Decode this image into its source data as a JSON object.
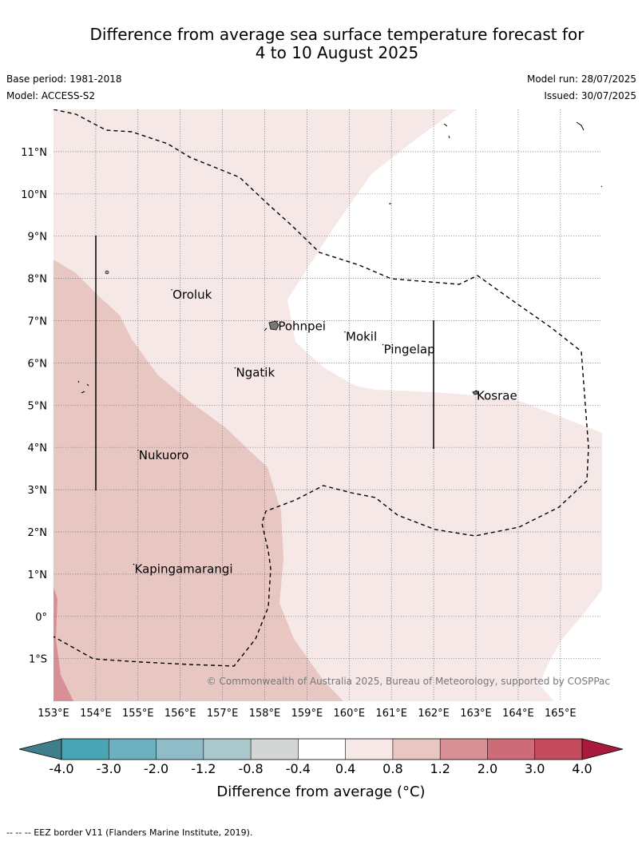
{
  "title": {
    "line1": "Difference from average sea surface temperature forecast for",
    "line2": "4 to 10 August 2025"
  },
  "meta": {
    "base_period": "Base period: 1981-2018",
    "model": "Model: ACCESS-S2",
    "model_run": "Model run: 28/07/2025",
    "issued": "Issued: 30/07/2025"
  },
  "map": {
    "lon_ticks": [
      "153°E",
      "154°E",
      "155°E",
      "156°E",
      "157°E",
      "158°E",
      "159°E",
      "160°E",
      "161°E",
      "162°E",
      "163°E",
      "164°E",
      "165°E"
    ],
    "lat_ticks": [
      "11°N",
      "10°N",
      "9°N",
      "8°N",
      "7°N",
      "6°N",
      "5°N",
      "4°N",
      "3°N",
      "2°N",
      "1°N",
      "0°",
      "1°S"
    ],
    "places": [
      {
        "name": "Oroluk",
        "lon": 155.8,
        "lat": 7.6
      },
      {
        "name": "Pohnpei",
        "lon": 158.3,
        "lat": 6.85
      },
      {
        "name": "Mokil",
        "lon": 159.9,
        "lat": 6.6
      },
      {
        "name": "Pingelap",
        "lon": 160.8,
        "lat": 6.3
      },
      {
        "name": "Ngatik",
        "lon": 157.3,
        "lat": 5.75
      },
      {
        "name": "Kosrae",
        "lon": 163.0,
        "lat": 5.2
      },
      {
        "name": "Nukuoro",
        "lon": 155.0,
        "lat": 3.8
      },
      {
        "name": "Kapingamarangi",
        "lon": 154.9,
        "lat": 1.1
      }
    ],
    "copyright": "© Commonwealth of Australia 2025, Bureau of Meteorology, supported by COSPPac"
  },
  "colorbar": {
    "ticks": [
      "-4.0",
      "-3.0",
      "-2.0",
      "-1.2",
      "-0.8",
      "-0.4",
      "0.4",
      "0.8",
      "1.2",
      "2.0",
      "3.0",
      "4.0"
    ],
    "colors": [
      "#49a4b4",
      "#6db1c0",
      "#90bcc7",
      "#aac9cc",
      "#d4d6d6",
      "#ffffff",
      "#f5e8e7",
      "#e8c6c1",
      "#d98f96",
      "#cd6b78",
      "#c44b5d"
    ],
    "extend_low_color": "#3f7f8c",
    "extend_high_color": "#a8193b",
    "label": "Difference from average (°C)"
  },
  "footnote": "--  --  -- EEZ border V11 (Flanders Marine Institute, 2019)."
}
